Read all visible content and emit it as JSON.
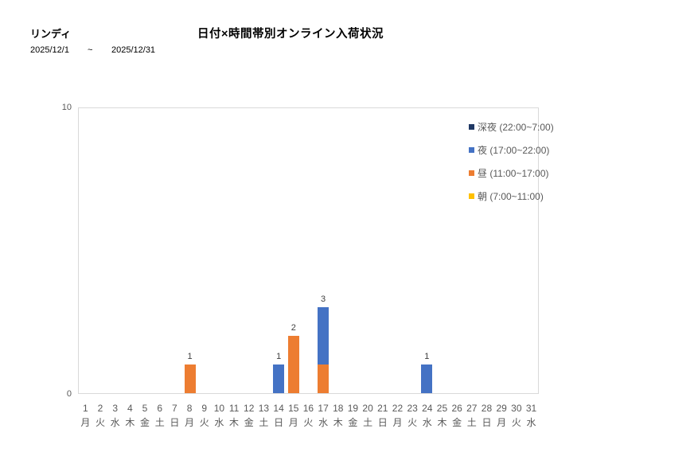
{
  "header": {
    "product_name": "リンディ",
    "chart_title": "日付×時間帯別オンライン入荷状況",
    "date_from": "2025/12/1",
    "date_separator": "~",
    "date_to": "2025/12/31"
  },
  "chart_data": {
    "type": "bar",
    "stacked": true,
    "title": "日付×時間帯別オンライン入荷状況",
    "xlabel": "",
    "ylabel": "",
    "ylim": [
      0,
      10
    ],
    "y_ticks": [
      0,
      10
    ],
    "grid": false,
    "legend_position": "top-right",
    "categories": [
      {
        "day": "1",
        "weekday": "月"
      },
      {
        "day": "2",
        "weekday": "火"
      },
      {
        "day": "3",
        "weekday": "水"
      },
      {
        "day": "4",
        "weekday": "木"
      },
      {
        "day": "5",
        "weekday": "金"
      },
      {
        "day": "6",
        "weekday": "土"
      },
      {
        "day": "7",
        "weekday": "日"
      },
      {
        "day": "8",
        "weekday": "月"
      },
      {
        "day": "9",
        "weekday": "火"
      },
      {
        "day": "10",
        "weekday": "水"
      },
      {
        "day": "11",
        "weekday": "木"
      },
      {
        "day": "12",
        "weekday": "金"
      },
      {
        "day": "13",
        "weekday": "土"
      },
      {
        "day": "14",
        "weekday": "日"
      },
      {
        "day": "15",
        "weekday": "月"
      },
      {
        "day": "16",
        "weekday": "火"
      },
      {
        "day": "17",
        "weekday": "水"
      },
      {
        "day": "18",
        "weekday": "木"
      },
      {
        "day": "19",
        "weekday": "金"
      },
      {
        "day": "20",
        "weekday": "土"
      },
      {
        "day": "21",
        "weekday": "日"
      },
      {
        "day": "22",
        "weekday": "月"
      },
      {
        "day": "23",
        "weekday": "火"
      },
      {
        "day": "24",
        "weekday": "水"
      },
      {
        "day": "25",
        "weekday": "木"
      },
      {
        "day": "26",
        "weekday": "金"
      },
      {
        "day": "27",
        "weekday": "土"
      },
      {
        "day": "28",
        "weekday": "日"
      },
      {
        "day": "29",
        "weekday": "月"
      },
      {
        "day": "30",
        "weekday": "火"
      },
      {
        "day": "31",
        "weekday": "水"
      }
    ],
    "series": [
      {
        "name": "朝 (7:00~11:00)",
        "color": "#FFC000",
        "values": [
          0,
          0,
          0,
          0,
          0,
          0,
          0,
          0,
          0,
          0,
          0,
          0,
          0,
          0,
          0,
          0,
          0,
          0,
          0,
          0,
          0,
          0,
          0,
          0,
          0,
          0,
          0,
          0,
          0,
          0,
          0
        ]
      },
      {
        "name": "昼 (11:00~17:00)",
        "color": "#ED7D31",
        "values": [
          0,
          0,
          0,
          0,
          0,
          0,
          0,
          1,
          0,
          0,
          0,
          0,
          0,
          0,
          2,
          0,
          1,
          0,
          0,
          0,
          0,
          0,
          0,
          0,
          0,
          0,
          0,
          0,
          0,
          0,
          0
        ]
      },
      {
        "name": "夜 (17:00~22:00)",
        "color": "#4472C4",
        "values": [
          0,
          0,
          0,
          0,
          0,
          0,
          0,
          0,
          0,
          0,
          0,
          0,
          0,
          1,
          0,
          0,
          2,
          0,
          0,
          0,
          0,
          0,
          0,
          1,
          0,
          0,
          0,
          0,
          0,
          0,
          0
        ]
      },
      {
        "name": "深夜 (22:00~7:00)",
        "color": "#1F3864",
        "values": [
          0,
          0,
          0,
          0,
          0,
          0,
          0,
          0,
          0,
          0,
          0,
          0,
          0,
          0,
          0,
          0,
          0,
          0,
          0,
          0,
          0,
          0,
          0,
          0,
          0,
          0,
          0,
          0,
          0,
          0,
          0
        ]
      }
    ],
    "totals": [
      0,
      0,
      0,
      0,
      0,
      0,
      0,
      1,
      0,
      0,
      0,
      0,
      0,
      1,
      2,
      0,
      3,
      0,
      0,
      0,
      0,
      0,
      0,
      1,
      0,
      0,
      0,
      0,
      0,
      0,
      0
    ],
    "colors": {
      "axis_border": "#D9D9D9",
      "tick_text": "#595959",
      "data_label_text": "#404040"
    }
  }
}
